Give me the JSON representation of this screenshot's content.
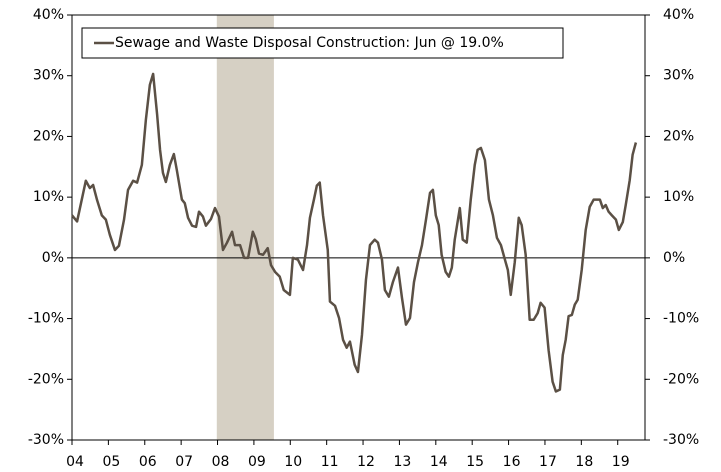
{
  "chart_data": {
    "type": "line",
    "series": [
      {
        "name": "Sewage and Waste Disposal Construction: Jun @ 19.0%",
        "color": "#5b5045",
        "x": [
          2004.0,
          2004.14,
          2004.38,
          2004.49,
          2004.58,
          2004.69,
          2004.82,
          2004.93,
          2005.04,
          2005.18,
          2005.29,
          2005.43,
          2005.54,
          2005.68,
          2005.79,
          2005.92,
          2006.03,
          2006.14,
          2006.23,
          2006.34,
          2006.42,
          2006.5,
          2006.58,
          2006.69,
          2006.8,
          2006.88,
          2007.02,
          2007.1,
          2007.19,
          2007.3,
          2007.41,
          2007.49,
          2007.6,
          2007.68,
          2007.82,
          2007.93,
          2008.04,
          2008.15,
          2008.26,
          2008.4,
          2008.48,
          2008.62,
          2008.73,
          2008.84,
          2008.97,
          2009.05,
          2009.14,
          2009.25,
          2009.38,
          2009.47,
          2009.58,
          2009.71,
          2009.82,
          2009.99,
          2010.07,
          2010.21,
          2010.35,
          2010.46,
          2010.54,
          2010.65,
          2010.73,
          2010.81,
          2010.9,
          2011.03,
          2011.09,
          2011.23,
          2011.34,
          2011.45,
          2011.55,
          2011.64,
          2011.77,
          2011.86,
          2011.97,
          2012.08,
          2012.19,
          2012.32,
          2012.41,
          2012.52,
          2012.6,
          2012.71,
          2012.82,
          2012.96,
          2013.07,
          2013.18,
          2013.29,
          2013.4,
          2013.51,
          2013.62,
          2013.73,
          2013.84,
          2013.92,
          2014.0,
          2014.08,
          2014.16,
          2014.27,
          2014.36,
          2014.44,
          2014.52,
          2014.66,
          2014.74,
          2014.85,
          2014.96,
          2015.07,
          2015.15,
          2015.24,
          2015.35,
          2015.46,
          2015.57,
          2015.68,
          2015.79,
          2015.9,
          2015.98,
          2016.06,
          2016.17,
          2016.28,
          2016.36,
          2016.47,
          2016.58,
          2016.69,
          2016.8,
          2016.88,
          2016.99,
          2017.1,
          2017.21,
          2017.3,
          2017.41,
          2017.49,
          2017.57,
          2017.65,
          2017.74,
          2017.82,
          2017.9,
          2018.01,
          2018.12,
          2018.23,
          2018.34,
          2018.42,
          2018.51,
          2018.59,
          2018.67,
          2018.75,
          2018.84,
          2018.95,
          2019.03,
          2019.14,
          2019.22,
          2019.33,
          2019.41,
          2019.5
        ],
        "values": [
          7,
          6,
          12.7,
          11.5,
          12,
          9.5,
          7,
          6.3,
          3.8,
          1.3,
          2,
          6.3,
          11.2,
          12.7,
          12.4,
          15.3,
          22.7,
          28.5,
          30.3,
          23.6,
          17.8,
          14,
          12.5,
          15.3,
          17.1,
          14.5,
          9.6,
          9,
          6.6,
          5.3,
          5.1,
          7.6,
          6.8,
          5.3,
          6.4,
          8.2,
          6.8,
          1.3,
          2.5,
          4.3,
          2.1,
          2.1,
          0,
          0,
          4.3,
          3.1,
          0.7,
          0.5,
          1.6,
          -1.2,
          -2.3,
          -3.1,
          -5.3,
          -6.1,
          0,
          -0.3,
          -2,
          2.1,
          6.6,
          9.6,
          11.9,
          12.4,
          7,
          1.3,
          -7.2,
          -7.9,
          -9.9,
          -13.5,
          -14.8,
          -13.8,
          -17.6,
          -18.8,
          -12.7,
          -3.6,
          2.1,
          3,
          2.5,
          -0.3,
          -5.3,
          -6.4,
          -4,
          -1.6,
          -6.6,
          -11,
          -9.9,
          -4,
          -0.7,
          2.1,
          6.3,
          10.7,
          11.2,
          7,
          5.4,
          0.5,
          -2.3,
          -3.1,
          -1.6,
          3,
          8.2,
          3,
          2.5,
          9.6,
          15.3,
          17.8,
          18.1,
          16.1,
          9.6,
          7,
          3.3,
          2.1,
          -0.3,
          -2,
          -6.1,
          -0.7,
          6.6,
          5.4,
          0.5,
          -10.2,
          -10.2,
          -9.1,
          -7.4,
          -8.2,
          -15.2,
          -20.4,
          -22,
          -21.7,
          -16,
          -13.5,
          -9.6,
          -9.4,
          -7.7,
          -6.9,
          -2,
          4.6,
          8.4,
          9.6,
          9.6,
          9.6,
          8.2,
          8.7,
          7.6,
          7,
          6.3,
          4.6,
          5.9,
          8.7,
          12.8,
          17,
          19
        ]
      }
    ],
    "shaded_spans": [
      [
        2007.98,
        2009.55
      ]
    ],
    "shade_color": "#d6d0c4",
    "xlim": [
      2004,
      2019.75
    ],
    "xticks": [
      {
        "value": 2004,
        "label": "04"
      },
      {
        "value": 2005,
        "label": "05"
      },
      {
        "value": 2006,
        "label": "06"
      },
      {
        "value": 2007,
        "label": "07"
      },
      {
        "value": 2008,
        "label": "08"
      },
      {
        "value": 2009,
        "label": "09"
      },
      {
        "value": 2010,
        "label": "10"
      },
      {
        "value": 2011,
        "label": "11"
      },
      {
        "value": 2012,
        "label": "12"
      },
      {
        "value": 2013,
        "label": "13"
      },
      {
        "value": 2014,
        "label": "14"
      },
      {
        "value": 2015,
        "label": "15"
      },
      {
        "value": 2016,
        "label": "16"
      },
      {
        "value": 2017,
        "label": "17"
      },
      {
        "value": 2018,
        "label": "18"
      },
      {
        "value": 2019,
        "label": "19"
      }
    ],
    "ylim": [
      -30,
      40
    ],
    "yticks": [
      {
        "value": -30,
        "label": "-30%"
      },
      {
        "value": -20,
        "label": "-20%"
      },
      {
        "value": -10,
        "label": "-10%"
      },
      {
        "value": 0,
        "label": "0%"
      },
      {
        "value": 10,
        "label": "10%"
      },
      {
        "value": 20,
        "label": "20%"
      },
      {
        "value": 30,
        "label": "30%"
      },
      {
        "value": 40,
        "label": "40%"
      }
    ],
    "y2lim": [
      -30,
      40
    ],
    "y2ticks": [
      {
        "value": -30,
        "label": "-30%"
      },
      {
        "value": -20,
        "label": "-20%"
      },
      {
        "value": -10,
        "label": "-10%"
      },
      {
        "value": 0,
        "label": "0%"
      },
      {
        "value": 10,
        "label": "10%"
      },
      {
        "value": 20,
        "label": "20%"
      },
      {
        "value": 30,
        "label": "30%"
      },
      {
        "value": 40,
        "label": "40%"
      }
    ],
    "legend": "upper left"
  }
}
